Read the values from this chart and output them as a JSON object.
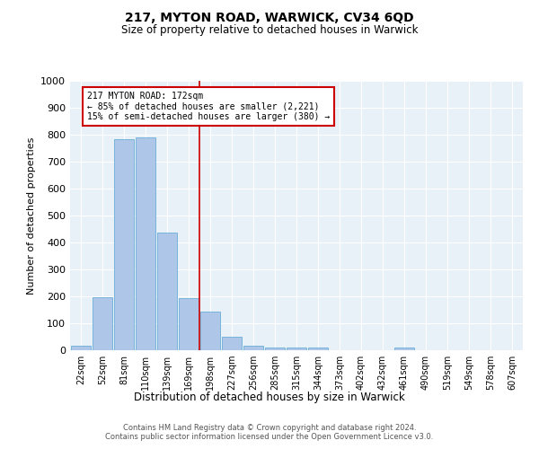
{
  "title1": "217, MYTON ROAD, WARWICK, CV34 6QD",
  "title2": "Size of property relative to detached houses in Warwick",
  "xlabel": "Distribution of detached houses by size in Warwick",
  "ylabel": "Number of detached properties",
  "categories": [
    "22sqm",
    "52sqm",
    "81sqm",
    "110sqm",
    "139sqm",
    "169sqm",
    "198sqm",
    "227sqm",
    "256sqm",
    "285sqm",
    "315sqm",
    "344sqm",
    "373sqm",
    "402sqm",
    "432sqm",
    "461sqm",
    "490sqm",
    "519sqm",
    "549sqm",
    "578sqm",
    "607sqm"
  ],
  "values": [
    18,
    197,
    783,
    789,
    436,
    193,
    143,
    49,
    16,
    10,
    10,
    10,
    0,
    0,
    0,
    10,
    0,
    0,
    0,
    0,
    0
  ],
  "bar_color": "#aec6e8",
  "bar_edge_color": "#6aaed6",
  "bg_color": "#e8f0f8",
  "grid_color": "#ffffff",
  "vline_x": 5.5,
  "vline_color": "#cc0000",
  "annotation_text": "217 MYTON ROAD: 172sqm\n← 85% of detached houses are smaller (2,221)\n15% of semi-detached houses are larger (380) →",
  "box_color": "#cc0000",
  "ylim": [
    0,
    1000
  ],
  "yticks": [
    0,
    100,
    200,
    300,
    400,
    500,
    600,
    700,
    800,
    900,
    1000
  ],
  "footer1": "Contains HM Land Registry data © Crown copyright and database right 2024.",
  "footer2": "Contains public sector information licensed under the Open Government Licence v3.0."
}
